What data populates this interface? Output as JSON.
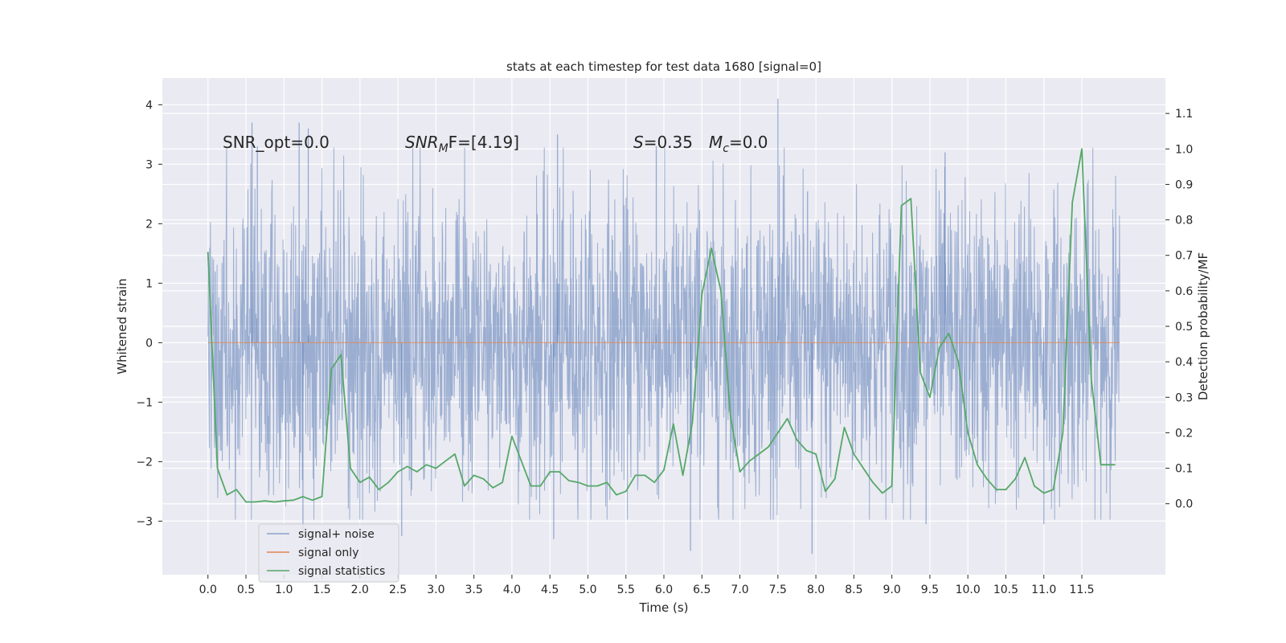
{
  "chart_data": {
    "type": "line",
    "title": "stats at each timestep for test data 1680 [signal=0]",
    "xlabel": "Time (s)",
    "ylabel_left": "Whitened strain",
    "ylabel_right": "Detection probability/MF",
    "xlim": [
      -0.6,
      12.6
    ],
    "ylim_left": [
      -3.9,
      4.45
    ],
    "ylim_right": [
      -0.2,
      1.2
    ],
    "x_ticks": [
      0.0,
      0.5,
      1.0,
      1.5,
      2.0,
      2.5,
      3.0,
      3.5,
      4.0,
      4.5,
      5.0,
      5.5,
      6.0,
      6.5,
      7.0,
      7.5,
      8.0,
      8.5,
      9.0,
      9.5,
      10.0,
      10.5,
      11.0,
      11.5
    ],
    "x_tick_labels": [
      "0.0",
      "0.5",
      "1.0",
      "1.5",
      "2.0",
      "2.5",
      "3.0",
      "3.5",
      "4.0",
      "4.5",
      "5.0",
      "5.5",
      "6.0",
      "6.5",
      "7.0",
      "7.5",
      "8.0",
      "8.5",
      "9.0",
      "9.5",
      "10.0",
      "10.5",
      "11.0",
      "11.5"
    ],
    "y_left_ticks": [
      -3,
      -2,
      -1,
      0,
      1,
      2,
      3,
      4
    ],
    "y_left_tick_labels": [
      "−3",
      "−2",
      "−1",
      "0",
      "1",
      "2",
      "3",
      "4"
    ],
    "y_right_ticks": [
      0.0,
      0.1,
      0.2,
      0.3,
      0.4,
      0.5,
      0.6,
      0.7,
      0.8,
      0.9,
      1.0,
      1.1
    ],
    "y_right_tick_labels": [
      "0.0",
      "0.1",
      "0.2",
      "0.3",
      "0.4",
      "0.5",
      "0.6",
      "0.7",
      "0.8",
      "0.9",
      "1.0",
      "1.1"
    ],
    "grid": true,
    "legend_position": "bottom-left",
    "annotations": {
      "snr_opt": "SNR_opt=0.0",
      "snr_mf_base": "SNR",
      "snr_mf_sub": "M",
      "snr_mf_rest": "F=[4.19]",
      "s_var": "S",
      "s_val": "=0.35",
      "mc_var": "M",
      "mc_sub": "c",
      "mc_val": "=0.0"
    },
    "series": [
      {
        "name": "signal+ noise",
        "axis": "left",
        "color": "#4c72b0",
        "x_range": [
          0.0,
          12.0
        ],
        "typical_band": [
          -1.5,
          1.5
        ],
        "extreme_range": [
          -3.5,
          4.1
        ],
        "spikes": [
          {
            "x": 0.58,
            "y": 3.7
          },
          {
            "x": 0.65,
            "y": 3.3
          },
          {
            "x": 1.2,
            "y": 3.7
          },
          {
            "x": 1.32,
            "y": 3.6
          },
          {
            "x": 4.6,
            "y": 3.5
          },
          {
            "x": 5.9,
            "y": 3.3
          },
          {
            "x": 7.5,
            "y": 4.1
          },
          {
            "x": 9.7,
            "y": 3.2
          },
          {
            "x": 6.35,
            "y": -3.5
          },
          {
            "x": 7.95,
            "y": -3.55
          },
          {
            "x": 4.55,
            "y": -3.3
          },
          {
            "x": 11.0,
            "y": -3.05
          },
          {
            "x": 1.25,
            "y": -3.2
          },
          {
            "x": 2.55,
            "y": -3.25
          },
          {
            "x": 9.45,
            "y": -3.05
          }
        ]
      },
      {
        "name": "signal only",
        "axis": "left",
        "color": "#dd8452",
        "x": [
          0.0,
          12.0
        ],
        "y": [
          0.0,
          0.0
        ]
      },
      {
        "name": "signal statistics",
        "axis": "right",
        "color": "#55a868",
        "x": [
          0.0,
          0.125,
          0.25,
          0.375,
          0.5,
          0.625,
          0.75,
          0.875,
          1.0,
          1.125,
          1.25,
          1.375,
          1.5,
          1.625,
          1.75,
          1.875,
          2.0,
          2.125,
          2.25,
          2.375,
          2.5,
          2.625,
          2.75,
          2.875,
          3.0,
          3.125,
          3.25,
          3.375,
          3.5,
          3.625,
          3.75,
          3.875,
          4.0,
          4.125,
          4.25,
          4.375,
          4.5,
          4.625,
          4.75,
          4.875,
          5.0,
          5.125,
          5.25,
          5.375,
          5.5,
          5.625,
          5.75,
          5.875,
          6.0,
          6.125,
          6.25,
          6.375,
          6.5,
          6.625,
          6.75,
          6.875,
          7.0,
          7.125,
          7.25,
          7.375,
          7.5,
          7.625,
          7.75,
          7.875,
          8.0,
          8.125,
          8.25,
          8.375,
          8.5,
          8.625,
          8.75,
          8.875,
          9.0,
          9.125,
          9.25,
          9.375,
          9.5,
          9.625,
          9.75,
          9.875,
          10.0,
          10.125,
          10.25,
          10.375,
          10.5,
          10.625,
          10.75,
          10.875,
          11.0,
          11.125,
          11.25,
          11.375,
          11.5,
          11.625,
          11.75,
          11.875,
          11.94
        ],
        "y": [
          0.71,
          0.1,
          0.025,
          0.04,
          0.005,
          0.005,
          0.008,
          0.005,
          0.008,
          0.01,
          0.02,
          0.01,
          0.02,
          0.38,
          0.42,
          0.1,
          0.06,
          0.075,
          0.04,
          0.06,
          0.09,
          0.105,
          0.09,
          0.11,
          0.1,
          0.12,
          0.14,
          0.05,
          0.08,
          0.07,
          0.045,
          0.06,
          0.19,
          0.12,
          0.05,
          0.05,
          0.09,
          0.09,
          0.065,
          0.06,
          0.05,
          0.05,
          0.06,
          0.025,
          0.035,
          0.08,
          0.08,
          0.06,
          0.095,
          0.225,
          0.08,
          0.23,
          0.59,
          0.72,
          0.6,
          0.25,
          0.09,
          0.12,
          0.14,
          0.16,
          0.2,
          0.24,
          0.18,
          0.15,
          0.14,
          0.035,
          0.07,
          0.215,
          0.14,
          0.1,
          0.06,
          0.03,
          0.05,
          0.84,
          0.86,
          0.37,
          0.3,
          0.44,
          0.48,
          0.4,
          0.2,
          0.11,
          0.07,
          0.04,
          0.04,
          0.07,
          0.13,
          0.05,
          0.03,
          0.04,
          0.2,
          0.85,
          1.0,
          0.35,
          0.11,
          0.11,
          0.11
        ]
      }
    ]
  }
}
